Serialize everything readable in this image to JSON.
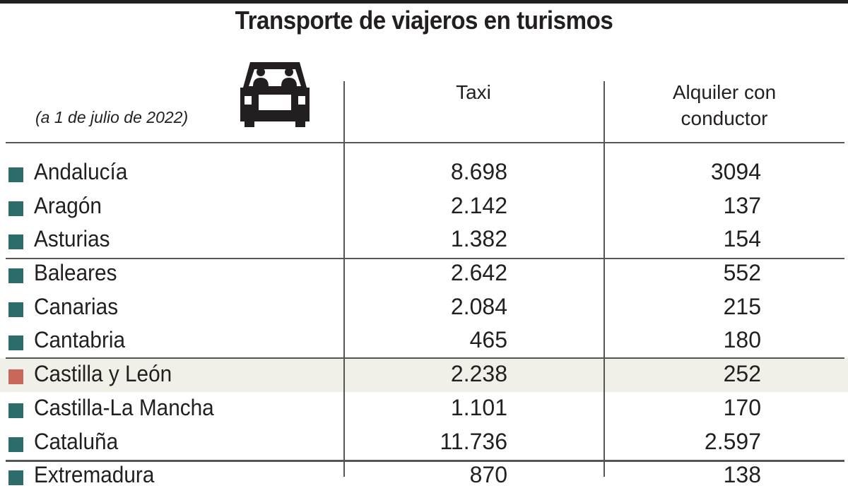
{
  "title": "Transporte de viajeros en turismos",
  "subtitle": "(a 1 de julio de 2022)",
  "icon": "car-with-passengers-icon",
  "colors": {
    "default_marker": "#2e6b6b",
    "highlight_marker": "#c8685a",
    "highlight_row": "#f1f0e8"
  },
  "columns": [
    "Taxi",
    "Alquiler con conductor"
  ],
  "chart_data": {
    "type": "table",
    "title": "Transporte de viajeros en turismos",
    "subtitle": "(a 1 de julio de 2022)",
    "columns": [
      "",
      "Taxi",
      "Alquiler con conductor"
    ],
    "highlighted_row": "Castilla y León",
    "rows": [
      {
        "region": "Andalucía",
        "taxi": "8.698",
        "alquiler": "3094"
      },
      {
        "region": "Aragón",
        "taxi": "2.142",
        "alquiler": "137"
      },
      {
        "region": "Asturias",
        "taxi": "1.382",
        "alquiler": "154"
      },
      {
        "region": "Baleares",
        "taxi": "2.642",
        "alquiler": "552"
      },
      {
        "region": "Canarias",
        "taxi": "2.084",
        "alquiler": "215"
      },
      {
        "region": "Cantabria",
        "taxi": "465",
        "alquiler": "180"
      },
      {
        "region": "Castilla y León",
        "taxi": "2.238",
        "alquiler": "252"
      },
      {
        "region": "Castilla-La Mancha",
        "taxi": "1.101",
        "alquiler": "170"
      },
      {
        "region": "Cataluña",
        "taxi": "11.736",
        "alquiler": "2.597"
      },
      {
        "region": "Extremadura",
        "taxi": "870",
        "alquiler": "138"
      }
    ]
  }
}
